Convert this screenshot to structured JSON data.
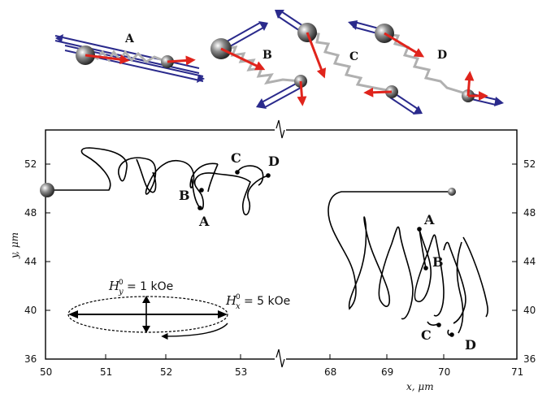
{
  "panel_labels": [
    "A",
    "B",
    "C",
    "D"
  ],
  "trajectory_labels": {
    "left": [
      "A",
      "B",
      "C",
      "D"
    ],
    "right": [
      "A",
      "B",
      "C",
      "D"
    ]
  },
  "axes": {
    "x_label": "x, μm",
    "y_label": "y, μm",
    "x_ticks_left": [
      "50",
      "51",
      "52",
      "53"
    ],
    "x_ticks_right": [
      "68",
      "69",
      "70",
      "71"
    ],
    "y_ticks": [
      "36",
      "40",
      "44",
      "48",
      "52"
    ]
  },
  "field_labels": {
    "hy": "= 1 kOe",
    "hx": "= 5 kOe"
  },
  "colors": {
    "moment_arrow": "#e0241c",
    "field_arrow": "#2a2a8c",
    "spring": "#b0b0b0",
    "trajectory": "#000000"
  }
}
